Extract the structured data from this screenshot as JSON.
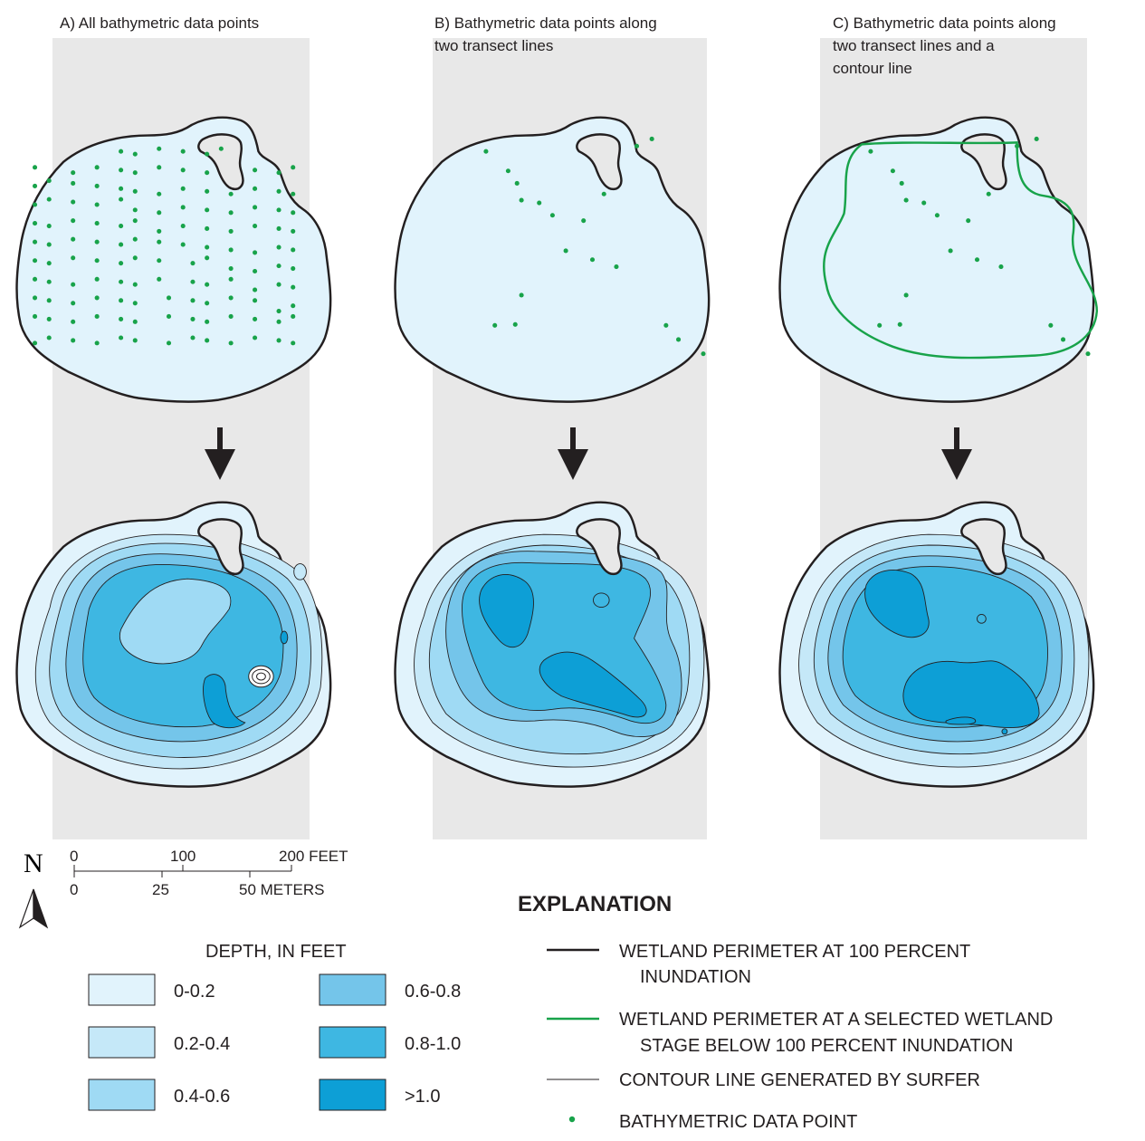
{
  "panels": [
    {
      "title_line1": "A) All bathymetric data points",
      "title_line2": "",
      "title_line3": ""
    },
    {
      "title_line1": "B) Bathymetric data points along",
      "title_line2": "two transect lines",
      "title_line3": ""
    },
    {
      "title_line1": "C) Bathymetric data points along",
      "title_line2": "two transect lines and a",
      "title_line3": "contour line"
    }
  ],
  "scale_bar": {
    "feet_ticks": [
      "0",
      "100",
      "200 FEET"
    ],
    "meter_ticks": [
      "0",
      "25",
      "50 METERS"
    ]
  },
  "north_arrow": {
    "letter": "N"
  },
  "depth_legend": {
    "title": "DEPTH, IN FEET",
    "classes": [
      {
        "label": "0-0.2",
        "color": "#e1f3fc"
      },
      {
        "label": "0.2-0.4",
        "color": "#c5e8f8"
      },
      {
        "label": "0.4-0.6",
        "color": "#9fdaf4"
      },
      {
        "label": "0.6-0.8",
        "color": "#74c5ea"
      },
      {
        "label": "0.8-1.0",
        "color": "#3eb7e2"
      },
      {
        "label": ">1.0",
        "color": "#0d9fd6"
      }
    ]
  },
  "explanation": {
    "title": "EXPLANATION",
    "items": [
      {
        "symbol": "black-line",
        "line1": "WETLAND PERIMETER AT 100 PERCENT",
        "line2": "INUNDATION"
      },
      {
        "symbol": "green-line",
        "line1": "WETLAND PERIMETER AT A SELECTED WETLAND",
        "line2": "STAGE BELOW 100 PERCENT INUNDATION"
      },
      {
        "symbol": "thin-line",
        "line1": "CONTOUR LINE GENERATED BY SURFER",
        "line2": ""
      },
      {
        "symbol": "green-dot",
        "line1": "BATHYMETRIC DATA POINT",
        "line2": ""
      }
    ]
  },
  "colors": {
    "panel_bg": "#e8e8e8",
    "wetland_fill": "#e1f3fc",
    "perimeter": "#231f20",
    "stage_line": "#18a34a",
    "data_point": "#18a34a",
    "arrow": "#231f20"
  }
}
